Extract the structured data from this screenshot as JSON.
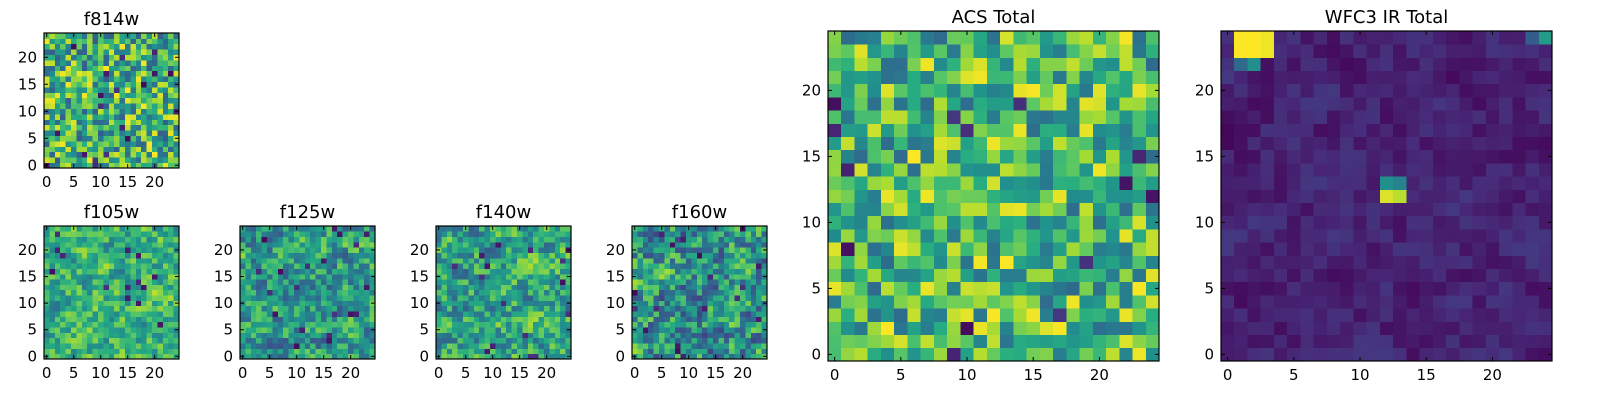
{
  "chart_data": [
    {
      "type": "heatmap",
      "title": "f814w",
      "xticks": [
        0,
        5,
        10,
        15,
        20
      ],
      "yticks": [
        0,
        5,
        10,
        15,
        20
      ],
      "xlim": [
        0,
        25
      ],
      "ylim": [
        0,
        25
      ],
      "colormap": "viridis",
      "vmin": 0,
      "vmax": 1,
      "seed": 814,
      "value_range": [
        0.3,
        1.0
      ],
      "smooth": 0,
      "cells": "25x25 grid of unlabeled pixel intensities; values not readable from the image, approximated procedurally"
    },
    {
      "type": "heatmap",
      "title": "f105w",
      "xticks": [
        0,
        5,
        10,
        15,
        20
      ],
      "yticks": [
        0,
        5,
        10,
        15,
        20
      ],
      "xlim": [
        0,
        25
      ],
      "ylim": [
        0,
        25
      ],
      "colormap": "viridis",
      "vmin": 0,
      "vmax": 1,
      "seed": 105,
      "value_range": [
        0.3,
        1.0
      ],
      "smooth": 1,
      "cells": "25x25 grid of unlabeled pixel intensities; values not readable from the image, approximated procedurally"
    },
    {
      "type": "heatmap",
      "title": "f125w",
      "xticks": [
        0,
        5,
        10,
        15,
        20
      ],
      "yticks": [
        0,
        5,
        10,
        15,
        20
      ],
      "xlim": [
        0,
        25
      ],
      "ylim": [
        0,
        25
      ],
      "colormap": "viridis",
      "vmin": 0,
      "vmax": 1,
      "seed": 125,
      "value_range": [
        0.15,
        0.95
      ],
      "smooth": 1,
      "cells": "25x25 grid of unlabeled pixel intensities; values not readable from the image, approximated procedurally"
    },
    {
      "type": "heatmap",
      "title": "f140w",
      "xticks": [
        0,
        5,
        10,
        15,
        20
      ],
      "yticks": [
        0,
        5,
        10,
        15,
        20
      ],
      "xlim": [
        0,
        25
      ],
      "ylim": [
        0,
        25
      ],
      "colormap": "viridis",
      "vmin": 0,
      "vmax": 1,
      "seed": 140,
      "value_range": [
        0.2,
        1.0
      ],
      "smooth": 1,
      "cells": "25x25 grid of unlabeled pixel intensities; values not readable from the image, approximated procedurally"
    },
    {
      "type": "heatmap",
      "title": "f160w",
      "xticks": [
        0,
        5,
        10,
        15,
        20
      ],
      "yticks": [
        0,
        5,
        10,
        15,
        20
      ],
      "xlim": [
        0,
        25
      ],
      "ylim": [
        0,
        25
      ],
      "colormap": "viridis",
      "vmin": 0,
      "vmax": 1,
      "seed": 160,
      "value_range": [
        0.05,
        1.0
      ],
      "smooth": 1,
      "cells": "25x25 grid of unlabeled pixel intensities; values not readable from the image, approximated procedurally"
    },
    {
      "type": "heatmap",
      "title": "ACS Total",
      "xticks": [
        0,
        5,
        10,
        15,
        20
      ],
      "yticks": [
        0,
        5,
        10,
        15,
        20
      ],
      "xlim": [
        0,
        25
      ],
      "ylim": [
        0,
        25
      ],
      "colormap": "viridis",
      "vmin": 0,
      "vmax": 1,
      "seed": 777,
      "value_range": [
        0.35,
        1.0
      ],
      "smooth": 0,
      "cells": "25x25 grid of unlabeled pixel intensities; values not readable from the image, approximated procedurally"
    },
    {
      "type": "heatmap",
      "title": "WFC3 IR Total",
      "xticks": [
        0,
        5,
        10,
        15,
        20
      ],
      "yticks": [
        0,
        5,
        10,
        15,
        20
      ],
      "xlim": [
        0,
        25
      ],
      "ylim": [
        0,
        25
      ],
      "colormap": "viridis",
      "vmin": 0,
      "vmax": 1,
      "seed": 333,
      "value_range": [
        0.0,
        0.2
      ],
      "smooth": 1,
      "bright_cells": [
        {
          "x": 1,
          "y": 23,
          "v": 1.0
        },
        {
          "x": 2,
          "y": 23,
          "v": 1.0
        },
        {
          "x": 3,
          "y": 23,
          "v": 0.98
        },
        {
          "x": 1,
          "y": 24,
          "v": 1.0
        },
        {
          "x": 2,
          "y": 24,
          "v": 1.0
        },
        {
          "x": 3,
          "y": 24,
          "v": 0.98
        },
        {
          "x": 2,
          "y": 22,
          "v": 0.5
        },
        {
          "x": 1,
          "y": 22,
          "v": 0.35
        },
        {
          "x": 24,
          "y": 24,
          "v": 0.55
        },
        {
          "x": 23,
          "y": 24,
          "v": 0.3
        },
        {
          "x": 12,
          "y": 12,
          "v": 0.95
        },
        {
          "x": 13,
          "y": 12,
          "v": 0.9
        },
        {
          "x": 12,
          "y": 13,
          "v": 0.5
        },
        {
          "x": 13,
          "y": 13,
          "v": 0.45
        }
      ],
      "cells": "25x25 grid of unlabeled pixel intensities; values not readable from the image, approximated procedurally"
    }
  ]
}
